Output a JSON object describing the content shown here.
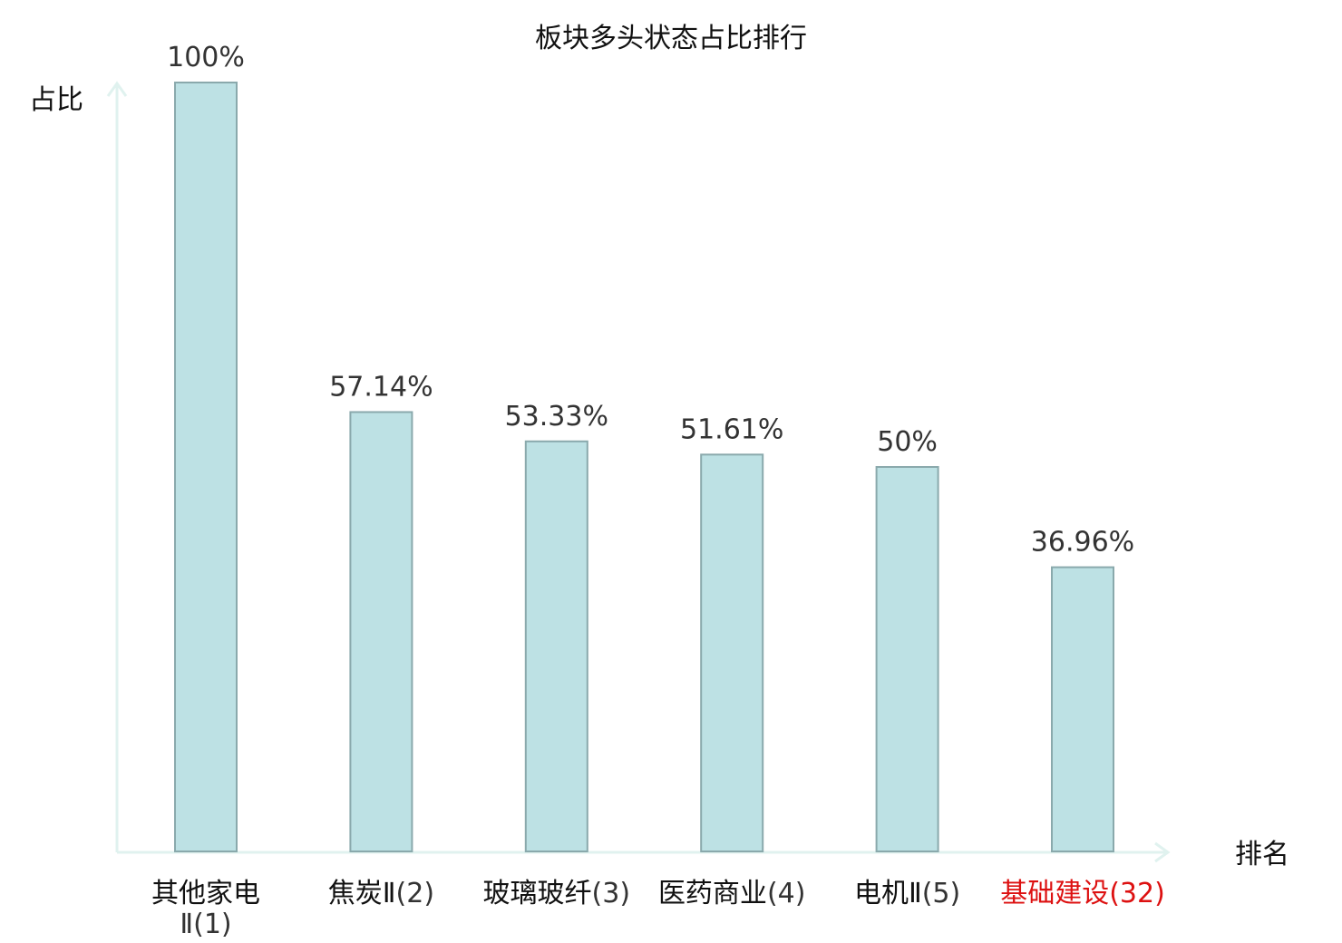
{
  "chart_data": {
    "type": "bar",
    "title": "板块多头状态占比排行",
    "ylabel": "占比",
    "xlabel": "排名",
    "ylim": [
      0,
      100
    ],
    "grid": false,
    "categories": [
      {
        "name": "其他家电",
        "rank": "Ⅱ(1)",
        "highlight": false
      },
      {
        "name": "焦炭Ⅱ",
        "rank": "(2)",
        "highlight": false
      },
      {
        "name": "玻璃玻纤",
        "rank": "(3)",
        "highlight": false
      },
      {
        "name": "医药商业",
        "rank": "(4)",
        "highlight": false
      },
      {
        "name": "电机Ⅱ",
        "rank": "(5)",
        "highlight": false
      },
      {
        "name": "基础建设",
        "rank": "(32)",
        "highlight": true
      }
    ],
    "values": [
      100,
      57.14,
      53.33,
      51.61,
      50,
      36.96
    ],
    "value_labels": [
      "100%",
      "57.14%",
      "53.33%",
      "51.61%",
      "50%",
      "36.96%"
    ],
    "colors": {
      "bar_fill": "#bde1e4",
      "bar_stroke": "#8aa9ac",
      "axis": "#e0f2ef",
      "text": "#111111",
      "highlight": "#dd1111"
    }
  }
}
